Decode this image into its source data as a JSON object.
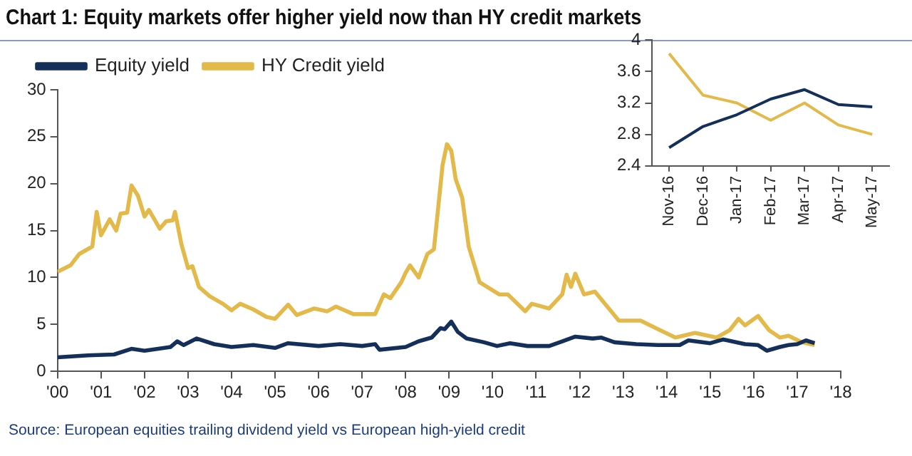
{
  "chart_data": [
    {
      "type": "line",
      "title": "Chart 1: Equity markets offer higher yield now than HY credit markets",
      "annotations": [
        "Source: European equities trailing dividend yield vs European high-yield credit"
      ],
      "legend": "top left",
      "grid": false,
      "marker": "none",
      "xlim": [
        2000,
        2018
      ],
      "xticks": [
        {
          "value": 2000,
          "label": "'00"
        },
        {
          "value": 2001,
          "label": "'01"
        },
        {
          "value": 2002,
          "label": "'02"
        },
        {
          "value": 2003,
          "label": "'03"
        },
        {
          "value": 2004,
          "label": "'04"
        },
        {
          "value": 2005,
          "label": "'05"
        },
        {
          "value": 2006,
          "label": "'06"
        },
        {
          "value": 2007,
          "label": "'07"
        },
        {
          "value": 2008,
          "label": "'08"
        },
        {
          "value": 2009,
          "label": "'09"
        },
        {
          "value": 2010,
          "label": "'10"
        },
        {
          "value": 2011,
          "label": "'11"
        },
        {
          "value": 2012,
          "label": "'12"
        },
        {
          "value": 2013,
          "label": "'13"
        },
        {
          "value": 2014,
          "label": "'14"
        },
        {
          "value": 2015,
          "label": "'15"
        },
        {
          "value": 2016,
          "label": "'16"
        },
        {
          "value": 2017,
          "label": "'17"
        },
        {
          "value": 2018,
          "label": "'18"
        }
      ],
      "ylim": [
        0,
        30
      ],
      "yticks": [
        0,
        5,
        10,
        15,
        20,
        25,
        30
      ],
      "series": [
        {
          "name": "Equity yield",
          "color": "#14305a",
          "x": [
            2000,
            2000.7,
            2001.3,
            2001.7,
            2002,
            2002.6,
            2002.75,
            2002.9,
            2003.2,
            2003.6,
            2004,
            2004.5,
            2005,
            2005.3,
            2006,
            2006.5,
            2007,
            2007.3,
            2007.4,
            2008,
            2008.3,
            2008.6,
            2008.8,
            2008.9,
            2009.05,
            2009.2,
            2009.4,
            2009.8,
            2010.1,
            2010.4,
            2010.8,
            2011.3,
            2011.6,
            2011.9,
            2012.3,
            2012.5,
            2012.8,
            2013.3,
            2013.8,
            2014.3,
            2014.5,
            2015,
            2015.3,
            2015.8,
            2016.1,
            2016.3,
            2016.6,
            2016.8,
            2017,
            2017.2,
            2017.4
          ],
          "values": [
            1.5,
            1.7,
            1.8,
            2.4,
            2.2,
            2.6,
            3.2,
            2.8,
            3.5,
            2.9,
            2.6,
            2.8,
            2.5,
            3.0,
            2.7,
            2.9,
            2.7,
            2.9,
            2.3,
            2.6,
            3.2,
            3.6,
            4.6,
            4.5,
            5.3,
            4.2,
            3.5,
            3.1,
            2.7,
            3.0,
            2.7,
            2.7,
            3.2,
            3.7,
            3.5,
            3.6,
            3.1,
            2.9,
            2.8,
            2.8,
            3.3,
            3.0,
            3.4,
            2.9,
            2.8,
            2.2,
            2.6,
            2.8,
            2.9,
            3.3,
            3.0
          ]
        },
        {
          "name": "HY Credit yield",
          "color": "#e3b94a",
          "x": [
            2000,
            2000.3,
            2000.5,
            2000.8,
            2000.9,
            2001,
            2001.2,
            2001.35,
            2001.45,
            2001.6,
            2001.7,
            2001.85,
            2002,
            2002.1,
            2002.35,
            2002.5,
            2002.65,
            2002.7,
            2002.85,
            2003,
            2003.1,
            2003.25,
            2003.5,
            2003.8,
            2004,
            2004.2,
            2004.5,
            2004.8,
            2005,
            2005.3,
            2005.5,
            2005.9,
            2006.2,
            2006.4,
            2006.8,
            2007.3,
            2007.5,
            2007.65,
            2007.9,
            2008,
            2008.1,
            2008.3,
            2008.5,
            2008.65,
            2008.85,
            2008.95,
            2009.05,
            2009.15,
            2009.3,
            2009.45,
            2009.7,
            2010.15,
            2010.35,
            2010.75,
            2010.9,
            2011.3,
            2011.6,
            2011.7,
            2011.8,
            2011.9,
            2012.1,
            2012.35,
            2012.9,
            2013.4,
            2013.75,
            2014.2,
            2014.65,
            2015.15,
            2015.45,
            2015.65,
            2015.8,
            2016.1,
            2016.35,
            2016.6,
            2016.8,
            2017.1,
            2017.4
          ],
          "values": [
            10.6,
            11.3,
            12.5,
            13.3,
            17,
            14.5,
            16.2,
            15,
            16.8,
            16.9,
            19.8,
            18.7,
            16.5,
            17.2,
            15.2,
            16,
            16.1,
            17,
            13.5,
            11,
            11.2,
            9,
            8,
            7.2,
            6.5,
            7.2,
            6.6,
            5.8,
            5.6,
            7.1,
            6,
            6.7,
            6.4,
            6.9,
            6.1,
            6.1,
            8.2,
            7.8,
            9.5,
            10.5,
            11.3,
            10,
            12.5,
            13,
            22,
            24.2,
            23.5,
            20.5,
            18.5,
            13.3,
            9.5,
            8.2,
            8.2,
            6.4,
            7.2,
            6.7,
            8.2,
            10.3,
            9,
            10.4,
            8.2,
            8.5,
            5.4,
            5.4,
            4.6,
            3.6,
            4.1,
            3.6,
            4.4,
            5.6,
            4.9,
            5.9,
            4.4,
            3.6,
            3.8,
            3.1,
            2.8
          ]
        }
      ]
    },
    {
      "type": "line",
      "legend": false,
      "grid": false,
      "marker": "none",
      "categories": [
        "Nov-16",
        "Dec-16",
        "Jan-17",
        "Feb-17",
        "Mar-17",
        "Apr-17",
        "May-17"
      ],
      "ylim": [
        2.4,
        4
      ],
      "yticks": [
        2.4,
        2.8,
        3.2,
        3.6,
        4
      ],
      "series": [
        {
          "color": "#14305a",
          "values": [
            2.63,
            2.9,
            3.05,
            3.25,
            3.37,
            3.18,
            3.15
          ]
        },
        {
          "color": "#e3b94a",
          "values": [
            3.83,
            3.3,
            3.2,
            2.98,
            3.2,
            2.92,
            2.8
          ]
        }
      ]
    }
  ]
}
